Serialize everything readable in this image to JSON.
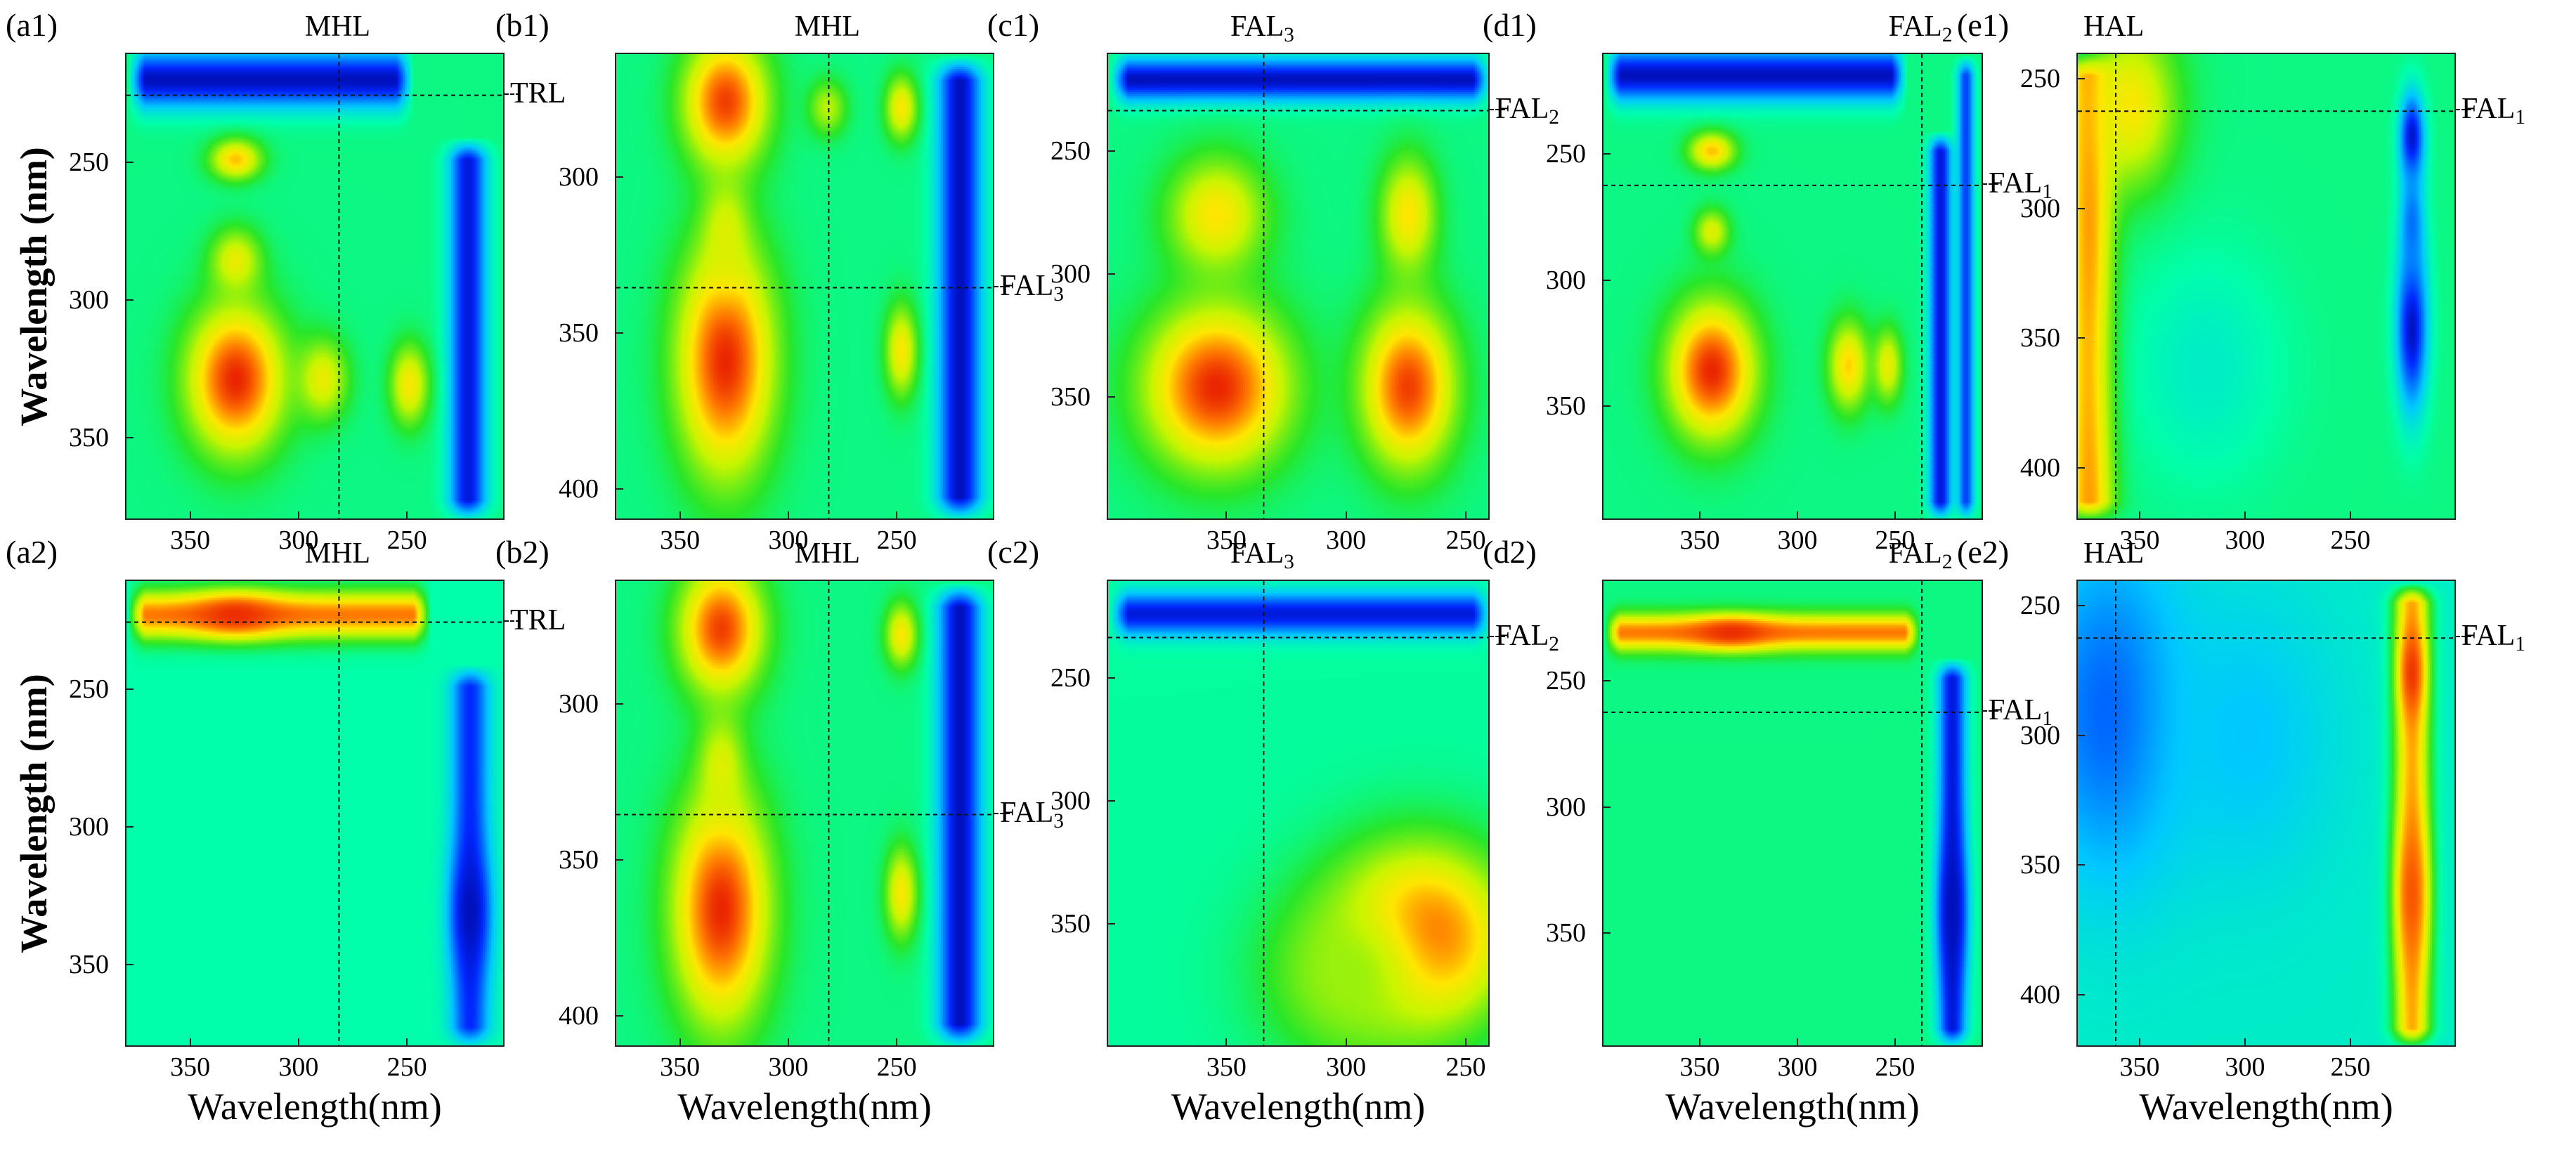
{
  "figure": {
    "y_axis_title": "Wavelength (nm)",
    "x_axis_title": "Wavelength(nm)"
  },
  "chart_data": [
    {
      "id": "a1",
      "type": "heatmap",
      "panel_label": "(a1)",
      "top_label": "MHL",
      "top_label_base": "",
      "top_label_sub": "",
      "side_label_base": "TRL",
      "side_label_sub": "",
      "x_ticks": [
        "350",
        "300",
        "250"
      ],
      "y_ticks": [
        "250",
        "300",
        "350"
      ],
      "xlabel": "",
      "ylabel": "Wavelength (nm)",
      "xlim": [
        380,
        205
      ],
      "ylim": [
        210,
        380
      ],
      "vline_x": 282,
      "hline_y": 225,
      "background": 0.45,
      "features": [
        {
          "type": "band",
          "axis": "y",
          "pos": 219,
          "width": 7,
          "value": 0.05,
          "x0": 380,
          "x1": 248
        },
        {
          "type": "band",
          "axis": "x",
          "pos": 223,
          "width": 6,
          "value": 0.08,
          "y0": 240,
          "y1": 380
        },
        {
          "type": "blob",
          "x": 330,
          "y": 328,
          "sx": 15,
          "sy": 18,
          "value": 0.98
        },
        {
          "type": "blob",
          "x": 330,
          "y": 285,
          "sx": 8,
          "sy": 8,
          "value": 0.72
        },
        {
          "type": "blob",
          "x": 330,
          "y": 248,
          "sx": 8,
          "sy": 5,
          "value": 0.8
        },
        {
          "type": "blob",
          "x": 290,
          "y": 328,
          "sx": 8,
          "sy": 10,
          "value": 0.72
        },
        {
          "type": "blob",
          "x": 250,
          "y": 330,
          "sx": 6,
          "sy": 10,
          "value": 0.75
        }
      ]
    },
    {
      "id": "b1",
      "type": "heatmap",
      "panel_label": "(b1)",
      "top_label": "MHL",
      "top_label_base": "",
      "top_label_sub": "",
      "side_label_base": "FAL",
      "side_label_sub": "3",
      "x_ticks": [
        "350",
        "300",
        "250"
      ],
      "y_ticks": [
        "300",
        "350",
        "400"
      ],
      "xlabel": "",
      "ylabel": "",
      "xlim": [
        380,
        205
      ],
      "ylim": [
        260,
        410
      ],
      "vline_x": 282,
      "hline_y": 335,
      "background": 0.45,
      "features": [
        {
          "type": "band",
          "axis": "x",
          "pos": 222,
          "width": 7,
          "value": 0.05,
          "y0": 260,
          "y1": 410
        },
        {
          "type": "blob",
          "x": 330,
          "y": 358,
          "sx": 15,
          "sy": 25,
          "value": 0.98
        },
        {
          "type": "blob",
          "x": 330,
          "y": 275,
          "sx": 13,
          "sy": 14,
          "value": 0.95
        },
        {
          "type": "blob",
          "x": 330,
          "y": 318,
          "sx": 7,
          "sy": 12,
          "value": 0.7
        },
        {
          "type": "blob",
          "x": 249,
          "y": 355,
          "sx": 5,
          "sy": 10,
          "value": 0.75
        },
        {
          "type": "blob",
          "x": 249,
          "y": 277,
          "sx": 5,
          "sy": 7,
          "value": 0.75
        },
        {
          "type": "blob",
          "x": 283,
          "y": 277,
          "sx": 6,
          "sy": 6,
          "value": 0.65
        }
      ]
    },
    {
      "id": "c1",
      "type": "heatmap",
      "panel_label": "(c1)",
      "top_label": "",
      "top_label_base": "FAL",
      "top_label_sub": "3",
      "side_label_base": "FAL",
      "side_label_sub": "2",
      "x_ticks": [
        "350",
        "300",
        "250"
      ],
      "y_ticks": [
        "250",
        "300",
        "350"
      ],
      "xlabel": "",
      "ylabel": "",
      "xlim": [
        400,
        240
      ],
      "ylim": [
        210,
        400
      ],
      "vline_x": 335,
      "hline_y": 233,
      "background": 0.45,
      "features": [
        {
          "type": "band",
          "axis": "y",
          "pos": 220,
          "width": 6,
          "value": 0.05,
          "x0": 400,
          "x1": 240
        },
        {
          "type": "blob",
          "x": 355,
          "y": 345,
          "sx": 20,
          "sy": 22,
          "value": 0.98
        },
        {
          "type": "blob",
          "x": 275,
          "y": 345,
          "sx": 13,
          "sy": 22,
          "value": 0.95
        },
        {
          "type": "blob",
          "x": 355,
          "y": 275,
          "sx": 14,
          "sy": 16,
          "value": 0.76
        },
        {
          "type": "blob",
          "x": 275,
          "y": 275,
          "sx": 8,
          "sy": 16,
          "value": 0.76
        }
      ]
    },
    {
      "id": "d1",
      "type": "heatmap",
      "panel_label": "(d1)",
      "top_label": "",
      "top_label_base": "FAL",
      "top_label_sub": "2",
      "side_label_base": "FAL",
      "side_label_sub": "1",
      "x_ticks": [
        "350",
        "300",
        "250"
      ],
      "y_ticks": [
        "250",
        "300",
        "350"
      ],
      "xlabel": "",
      "ylabel": "",
      "xlim": [
        400,
        205
      ],
      "ylim": [
        210,
        395
      ],
      "vline_x": 237,
      "hline_y": 262,
      "background": 0.45,
      "features": [
        {
          "type": "band",
          "axis": "y",
          "pos": 218,
          "width": 7,
          "value": 0.05,
          "x0": 400,
          "x1": 245
        },
        {
          "type": "band",
          "axis": "x",
          "pos": 228,
          "width": 4,
          "value": 0.08,
          "y0": 240,
          "y1": 395
        },
        {
          "type": "band",
          "axis": "x",
          "pos": 215,
          "width": 3,
          "value": 0.15,
          "y0": 210,
          "y1": 395
        },
        {
          "type": "blob",
          "x": 345,
          "y": 335,
          "sx": 15,
          "sy": 18,
          "value": 0.98
        },
        {
          "type": "blob",
          "x": 345,
          "y": 280,
          "sx": 6,
          "sy": 6,
          "value": 0.7
        },
        {
          "type": "blob",
          "x": 345,
          "y": 248,
          "sx": 8,
          "sy": 5,
          "value": 0.8
        },
        {
          "type": "blob",
          "x": 275,
          "y": 333,
          "sx": 7,
          "sy": 12,
          "value": 0.78
        },
        {
          "type": "blob",
          "x": 255,
          "y": 333,
          "sx": 5,
          "sy": 10,
          "value": 0.72
        }
      ]
    },
    {
      "id": "e1",
      "type": "heatmap",
      "panel_label": "(e1)",
      "top_label": "HAL",
      "top_label_base": "",
      "top_label_sub": "",
      "side_label_base": "FAL",
      "side_label_sub": "1",
      "x_ticks": [
        "350",
        "300",
        "250"
      ],
      "y_ticks": [
        "250",
        "300",
        "350",
        "400"
      ],
      "xlabel": "",
      "ylabel": "",
      "xlim": [
        380,
        200
      ],
      "ylim": [
        240,
        420
      ],
      "vline_x": 362,
      "hline_y": 262,
      "background": 0.45,
      "features": [
        {
          "type": "band",
          "axis": "x",
          "pos": 375,
          "width": 8,
          "value": 0.85,
          "y0": 240,
          "y1": 420
        },
        {
          "type": "blob",
          "x": 355,
          "y": 260,
          "sx": 15,
          "sy": 22,
          "value": 0.75
        },
        {
          "type": "blob",
          "x": 320,
          "y": 360,
          "sx": 25,
          "sy": 30,
          "value": 0.38
        },
        {
          "type": "blob",
          "x": 222,
          "y": 345,
          "sx": 5,
          "sy": 22,
          "value": 0.05
        },
        {
          "type": "blob",
          "x": 222,
          "y": 272,
          "sx": 4,
          "sy": 12,
          "value": 0.05
        },
        {
          "type": "blob",
          "x": 222,
          "y": 305,
          "sx": 4,
          "sy": 15,
          "value": 0.2
        }
      ]
    },
    {
      "id": "a2",
      "type": "heatmap",
      "panel_label": "(a2)",
      "top_label": "MHL",
      "top_label_base": "",
      "top_label_sub": "",
      "side_label_base": "TRL",
      "side_label_sub": "",
      "x_ticks": [
        "350",
        "300",
        "250"
      ],
      "y_ticks": [
        "250",
        "300",
        "350"
      ],
      "xlabel": "Wavelength(nm)",
      "ylabel": "Wavelength (nm)",
      "xlim": [
        380,
        205
      ],
      "ylim": [
        210,
        380
      ],
      "vline_x": 282,
      "hline_y": 225,
      "background": 0.42,
      "features": [
        {
          "type": "band",
          "axis": "y",
          "pos": 222,
          "width": 6,
          "value": 0.88,
          "x0": 380,
          "x1": 240
        },
        {
          "type": "blob",
          "x": 330,
          "y": 222,
          "sx": 14,
          "sy": 5,
          "value": 0.97
        },
        {
          "type": "band",
          "axis": "x",
          "pos": 222,
          "width": 6,
          "value": 0.12,
          "y0": 240,
          "y1": 380
        },
        {
          "type": "blob",
          "x": 222,
          "y": 330,
          "sx": 6,
          "sy": 15,
          "value": 0.05
        }
      ]
    },
    {
      "id": "b2",
      "type": "heatmap",
      "panel_label": "(b2)",
      "top_label": "MHL",
      "top_label_base": "",
      "top_label_sub": "",
      "side_label_base": "FAL",
      "side_label_sub": "3",
      "x_ticks": [
        "350",
        "300",
        "250"
      ],
      "y_ticks": [
        "300",
        "350",
        "400"
      ],
      "xlabel": "Wavelength(nm)",
      "ylabel": "",
      "xlim": [
        380,
        205
      ],
      "ylim": [
        260,
        410
      ],
      "vline_x": 282,
      "hline_y": 335,
      "background": 0.45,
      "features": [
        {
          "type": "band",
          "axis": "x",
          "pos": 222,
          "width": 7,
          "value": 0.05,
          "y0": 260,
          "y1": 410
        },
        {
          "type": "blob",
          "x": 332,
          "y": 365,
          "sx": 15,
          "sy": 25,
          "value": 0.98
        },
        {
          "type": "blob",
          "x": 332,
          "y": 275,
          "sx": 13,
          "sy": 14,
          "value": 0.95
        },
        {
          "type": "blob",
          "x": 332,
          "y": 320,
          "sx": 7,
          "sy": 12,
          "value": 0.7
        },
        {
          "type": "blob",
          "x": 249,
          "y": 360,
          "sx": 5,
          "sy": 10,
          "value": 0.75
        },
        {
          "type": "blob",
          "x": 249,
          "y": 277,
          "sx": 5,
          "sy": 7,
          "value": 0.75
        }
      ]
    },
    {
      "id": "c2",
      "type": "heatmap",
      "panel_label": "(c2)",
      "top_label": "",
      "top_label_base": "FAL",
      "top_label_sub": "3",
      "side_label_base": "FAL",
      "side_label_sub": "2",
      "x_ticks": [
        "350",
        "300",
        "250"
      ],
      "y_ticks": [
        "250",
        "300",
        "350"
      ],
      "xlabel": "Wavelength(nm)",
      "ylabel": "",
      "xlim": [
        400,
        240
      ],
      "ylim": [
        210,
        400
      ],
      "vline_x": 335,
      "hline_y": 233,
      "background": 0.43,
      "features": [
        {
          "type": "band",
          "axis": "y",
          "pos": 223,
          "width": 6,
          "value": 0.08,
          "x0": 400,
          "x1": 240
        },
        {
          "type": "blob",
          "x": 270,
          "y": 355,
          "sx": 25,
          "sy": 25,
          "value": 0.97
        },
        {
          "type": "blob",
          "x": 300,
          "y": 370,
          "sx": 25,
          "sy": 25,
          "value": 0.62
        }
      ]
    },
    {
      "id": "d2",
      "type": "heatmap",
      "panel_label": "(d2)",
      "top_label": "",
      "top_label_base": "FAL",
      "top_label_sub": "2",
      "side_label_base": "FAL",
      "side_label_sub": "1",
      "x_ticks": [
        "350",
        "300",
        "250"
      ],
      "y_ticks": [
        "250",
        "300",
        "350"
      ],
      "xlabel": "Wavelength(nm)",
      "ylabel": "",
      "xlim": [
        400,
        205
      ],
      "ylim": [
        210,
        395
      ],
      "vline_x": 237,
      "hline_y": 262,
      "background": 0.45,
      "features": [
        {
          "type": "band",
          "axis": "y",
          "pos": 230,
          "width": 5,
          "value": 0.88,
          "x0": 400,
          "x1": 238
        },
        {
          "type": "blob",
          "x": 335,
          "y": 230,
          "sx": 14,
          "sy": 4,
          "value": 0.97
        },
        {
          "type": "band",
          "axis": "x",
          "pos": 222,
          "width": 5,
          "value": 0.08,
          "y0": 240,
          "y1": 395
        },
        {
          "type": "blob",
          "x": 222,
          "y": 340,
          "sx": 5,
          "sy": 20,
          "value": 0.05
        }
      ]
    },
    {
      "id": "e2",
      "type": "heatmap",
      "panel_label": "(e2)",
      "top_label": "HAL",
      "top_label_base": "",
      "top_label_sub": "",
      "side_label_base": "FAL",
      "side_label_sub": "1",
      "x_ticks": [
        "350",
        "300",
        "250"
      ],
      "y_ticks": [
        "250",
        "300",
        "350",
        "400"
      ],
      "xlabel": "Wavelength(nm)",
      "ylabel": "",
      "xlim": [
        380,
        200
      ],
      "ylim": [
        240,
        420
      ],
      "vline_x": 362,
      "hline_y": 262,
      "background": 0.38,
      "features": [
        {
          "type": "blob",
          "x": 365,
          "y": 290,
          "sx": 25,
          "sy": 45,
          "value": 0.18
        },
        {
          "type": "blob",
          "x": 300,
          "y": 300,
          "sx": 30,
          "sy": 40,
          "value": 0.3
        },
        {
          "type": "band",
          "axis": "x",
          "pos": 222,
          "width": 6,
          "value": 0.82,
          "y0": 240,
          "y1": 420
        },
        {
          "type": "blob",
          "x": 222,
          "y": 275,
          "sx": 4,
          "sy": 12,
          "value": 0.96
        },
        {
          "type": "blob",
          "x": 222,
          "y": 360,
          "sx": 5,
          "sy": 20,
          "value": 0.92
        }
      ]
    }
  ]
}
